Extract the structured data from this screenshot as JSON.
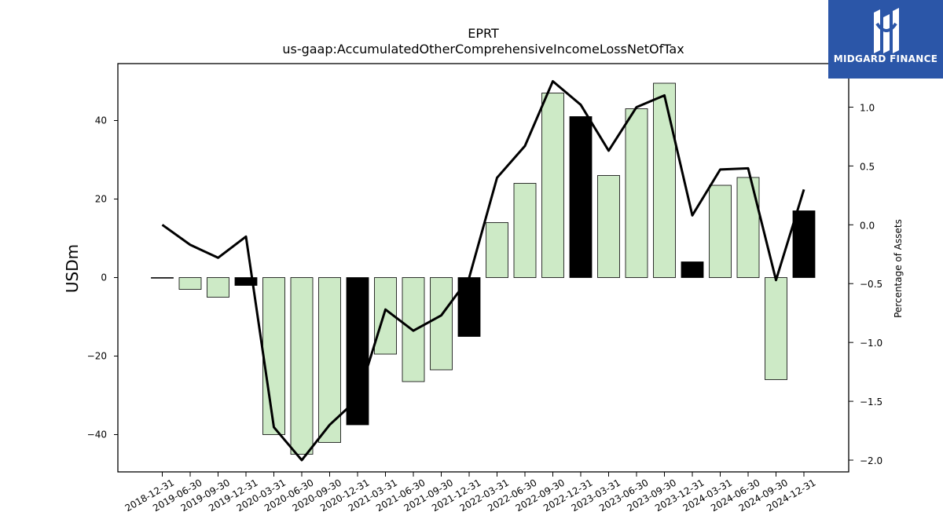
{
  "brand": {
    "name": "MIDGARD FINANCE",
    "logo_icon": "midgard-m-icon",
    "bg_color": "#2b56a8"
  },
  "chart_data": {
    "type": "bar",
    "title": "EPRT",
    "subtitle": "us-gaap:AccumulatedOtherComprehensiveIncomeLossNetOfTax",
    "ylabel": "USDm",
    "y2label": "Percentage of Assets",
    "ylim": [
      -49.5,
      54.5
    ],
    "y2lim": [
      -2.1,
      1.37
    ],
    "yticks": [
      -40,
      -20,
      0,
      20,
      40
    ],
    "y2ticks": [
      -2.0,
      -1.5,
      -1.0,
      -0.5,
      0.0,
      0.5,
      1.0
    ],
    "grid": false,
    "colors": {
      "bar": "#cdeac6",
      "highlight": "#000000",
      "line": "#000000"
    },
    "categories": [
      "2018-12-31",
      "2019-06-30",
      "2019-09-30",
      "2019-12-31",
      "2020-03-31",
      "2020-06-30",
      "2020-09-30",
      "2020-12-31",
      "2021-03-31",
      "2021-06-30",
      "2021-09-30",
      "2021-12-31",
      "2022-03-31",
      "2022-06-30",
      "2022-09-30",
      "2022-12-31",
      "2023-03-31",
      "2023-06-30",
      "2023-09-30",
      "2023-12-31",
      "2024-03-31",
      "2024-06-30",
      "2024-09-30",
      "2024-12-31"
    ],
    "series": [
      {
        "type": "bar",
        "axis": "left",
        "values": [
          0,
          -3,
          -5,
          -2,
          -40,
          -45,
          -42,
          -37.5,
          -19.5,
          -26.5,
          -23.5,
          -15,
          14,
          24,
          47,
          41,
          26,
          43,
          49.5,
          4,
          23.5,
          25.5,
          -26,
          17
        ],
        "highlight": [
          false,
          false,
          false,
          true,
          false,
          false,
          false,
          true,
          false,
          false,
          false,
          true,
          false,
          false,
          false,
          true,
          false,
          false,
          false,
          true,
          false,
          false,
          false,
          true
        ]
      },
      {
        "type": "line",
        "axis": "right",
        "values": [
          0.0,
          -0.17,
          -0.28,
          -0.1,
          -1.72,
          -2.0,
          -1.7,
          -1.48,
          -0.72,
          -0.9,
          -0.77,
          -0.45,
          0.4,
          0.67,
          1.22,
          1.02,
          0.63,
          1.0,
          1.1,
          0.08,
          0.47,
          0.48,
          -0.47,
          0.3
        ]
      }
    ]
  }
}
